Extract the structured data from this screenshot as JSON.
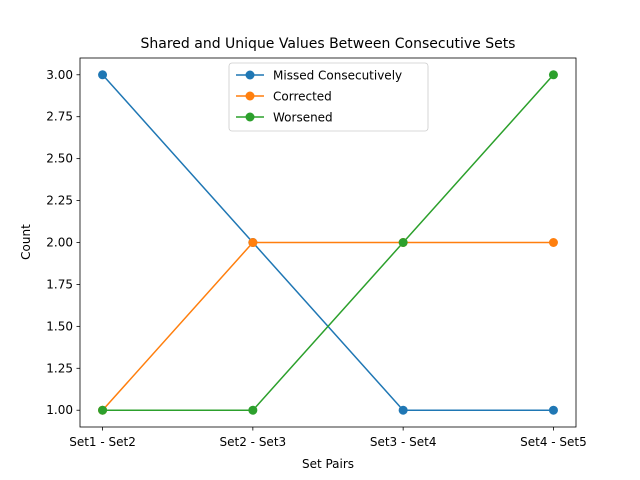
{
  "chart_data": {
    "type": "line",
    "title": "Shared and Unique Values Between Consecutive Sets",
    "xlabel": "Set Pairs",
    "ylabel": "Count",
    "categories": [
      "Set1 - Set2",
      "Set2 - Set3",
      "Set3 - Set4",
      "Set4 - Set5"
    ],
    "ylim": [
      0.9,
      3.1
    ],
    "yticks": [
      "1.00",
      "1.25",
      "1.50",
      "1.75",
      "2.00",
      "2.25",
      "2.50",
      "2.75",
      "3.00"
    ],
    "grid": false,
    "legend_position": "top-center",
    "series": [
      {
        "name": "Missed Consecutively",
        "color": "#1f77b4",
        "values": [
          3,
          2,
          1,
          1
        ]
      },
      {
        "name": "Corrected",
        "color": "#ff7f0e",
        "values": [
          1,
          2,
          2,
          2
        ]
      },
      {
        "name": "Worsened",
        "color": "#2ca02c",
        "values": [
          1,
          1,
          2,
          3
        ]
      }
    ]
  }
}
